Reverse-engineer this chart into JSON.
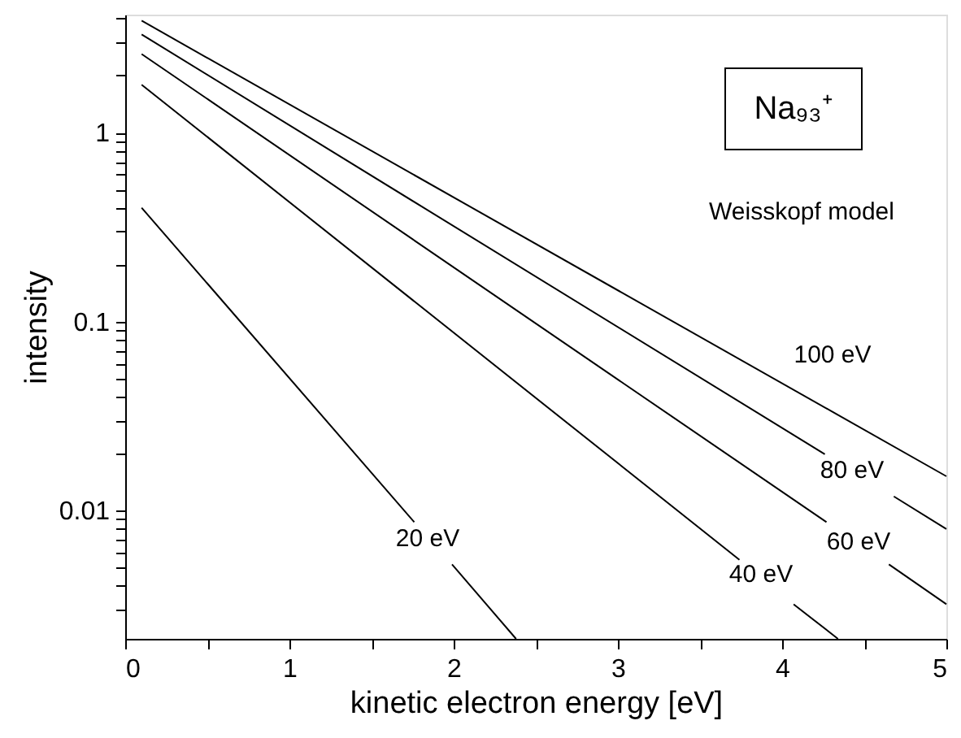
{
  "chart_data": {
    "type": "line",
    "xlabel": "kinetic electron energy [eV]",
    "ylabel": "intensity",
    "series": [
      {
        "color": "#000000",
        "x": [
          0.1,
          5
        ],
        "values": [
          3.9,
          0.0152
        ]
      },
      {
        "color": "#000000",
        "x": [
          0.1,
          4.26,
          4.47,
          4.68,
          5
        ],
        "values": [
          3.3,
          0.0199,
          null,
          0.0119,
          0.008
        ]
      },
      {
        "color": "#000000",
        "x": [
          0.1,
          4.27,
          4.46,
          4.65,
          5
        ],
        "values": [
          2.6,
          0.0087,
          null,
          0.0052,
          0.0032
        ]
      },
      {
        "color": "#000000",
        "x": [
          0.1,
          3.74,
          3.9,
          4.07,
          4.34
        ],
        "values": [
          1.79,
          0.0055,
          null,
          0.0032,
          0.0021
        ]
      },
      {
        "color": "#000000",
        "x": [
          0.1,
          1.76,
          1.87,
          1.99,
          2.38
        ],
        "values": [
          0.4,
          0.0087,
          null,
          0.0052,
          0.0021
        ]
      }
    ],
    "annotations": [
      "Na₉₃⁺",
      "Weisskopf model",
      "100 eV",
      "80 eV",
      "60 eV",
      "40 eV",
      "20 eV"
    ],
    "log": "y",
    "xlim": [
      0,
      5
    ],
    "ylim": [
      0.0021,
      4.2
    ],
    "xticks": [
      0,
      {
        "value": 0.5,
        "label": null
      },
      1,
      {
        "value": 1.5,
        "label": null
      },
      2,
      {
        "value": 2.5,
        "label": null
      },
      3,
      {
        "value": 3.5,
        "label": null
      },
      4,
      {
        "value": 4.5,
        "label": null
      },
      5
    ],
    "yticks": [
      {
        "value": 0.003,
        "label": null
      },
      {
        "value": 0.004,
        "label": null
      },
      {
        "value": 0.005,
        "label": null
      },
      {
        "value": 0.006,
        "label": null
      },
      {
        "value": 0.007,
        "label": null
      },
      {
        "value": 0.008,
        "label": null
      },
      {
        "value": 0.009,
        "label": null
      },
      0.01,
      {
        "value": 0.02,
        "label": null
      },
      {
        "value": 0.03,
        "label": null
      },
      {
        "value": 0.04,
        "label": null
      },
      {
        "value": 0.05,
        "label": null
      },
      {
        "value": 0.06,
        "label": null
      },
      {
        "value": 0.07,
        "label": null
      },
      {
        "value": 0.08,
        "label": null
      },
      {
        "value": 0.09,
        "label": null
      },
      0.1,
      {
        "value": 0.2,
        "label": null
      },
      {
        "value": 0.3,
        "label": null
      },
      {
        "value": 0.4,
        "label": null
      },
      {
        "value": 0.5,
        "label": null
      },
      {
        "value": 0.6,
        "label": null
      },
      {
        "value": 0.7,
        "label": null
      },
      {
        "value": 0.8,
        "label": null
      },
      {
        "value": 0.9,
        "label": null
      },
      1,
      {
        "value": 2,
        "label": null
      },
      {
        "value": 3,
        "label": null
      },
      {
        "value": 4,
        "label": null
      }
    ],
    "grid": false,
    "line_style": "solid",
    "marker": "none"
  }
}
